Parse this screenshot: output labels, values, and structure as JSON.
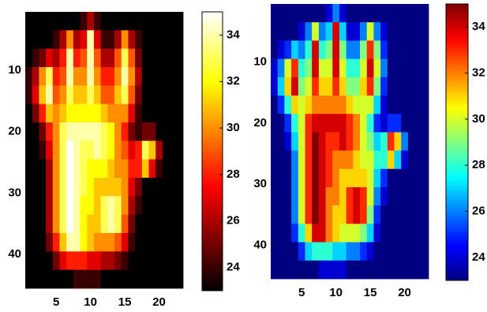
{
  "chart_data": [
    {
      "type": "heatmap",
      "colormap": "hot",
      "x": [
        1,
        2,
        3,
        4,
        5,
        6,
        7,
        8,
        9,
        10,
        11,
        12,
        13,
        14,
        15,
        16,
        17,
        18,
        19,
        20,
        21,
        22,
        23
      ],
      "y": [
        2,
        5,
        8,
        11,
        14,
        17,
        20,
        23,
        26,
        29,
        32,
        35,
        38,
        41,
        44
      ],
      "z": [
        [
          23,
          23,
          23,
          23,
          23,
          23,
          23,
          23,
          24,
          26,
          24,
          23,
          23,
          23,
          23,
          23,
          23,
          23,
          23,
          23,
          23,
          23,
          23
        ],
        [
          23,
          23,
          23,
          23,
          24,
          26,
          30,
          26,
          27,
          34,
          27,
          24,
          24,
          26,
          30,
          26,
          24,
          23,
          23,
          23,
          23,
          23,
          23
        ],
        [
          23,
          24,
          25,
          27,
          26,
          28,
          34,
          28,
          29,
          34,
          29,
          26,
          26,
          29,
          33,
          29,
          25,
          23,
          23,
          23,
          23,
          23,
          23
        ],
        [
          24,
          26,
          30,
          33,
          28,
          29,
          34,
          30,
          30,
          34,
          30,
          28,
          28,
          30,
          34,
          30,
          26,
          23,
          23,
          23,
          23,
          23,
          23
        ],
        [
          24,
          27,
          31,
          34,
          29,
          30,
          33,
          31,
          31,
          33,
          31,
          29,
          29,
          31,
          33,
          29,
          25,
          23,
          23,
          23,
          23,
          23,
          23
        ],
        [
          23,
          25,
          28,
          31,
          30,
          31,
          32,
          32,
          32,
          32,
          32,
          31,
          30,
          30,
          30,
          27,
          24,
          23,
          23,
          23,
          23,
          23,
          23
        ],
        [
          23,
          23,
          25,
          28,
          30,
          33,
          34,
          34,
          34,
          34,
          34,
          33,
          32,
          30,
          28,
          25,
          24,
          25,
          25,
          23,
          23,
          23,
          23
        ],
        [
          23,
          23,
          24,
          27,
          30,
          33,
          35,
          34,
          33,
          33,
          34,
          33,
          32,
          30,
          29,
          27,
          28,
          33,
          31,
          26,
          23,
          23,
          23
        ],
        [
          23,
          23,
          23,
          26,
          30,
          33,
          35,
          34,
          33,
          32,
          32,
          32,
          31,
          30,
          30,
          28,
          28,
          31,
          27,
          24,
          23,
          23,
          23
        ],
        [
          23,
          23,
          23,
          26,
          30,
          33,
          35,
          34,
          33,
          32,
          31,
          31,
          31,
          31,
          30,
          27,
          25,
          23,
          23,
          23,
          23,
          23,
          23
        ],
        [
          23,
          23,
          23,
          26,
          30,
          33,
          35,
          34,
          32,
          32,
          31,
          33,
          34,
          33,
          30,
          26,
          24,
          23,
          23,
          23,
          23,
          23,
          23
        ],
        [
          23,
          23,
          23,
          26,
          30,
          33,
          35,
          34,
          32,
          31,
          31,
          33,
          34,
          33,
          29,
          25,
          23,
          23,
          23,
          23,
          23,
          23,
          23
        ],
        [
          23,
          23,
          23,
          25,
          28,
          31,
          34,
          34,
          32,
          31,
          30,
          30,
          30,
          29,
          27,
          24,
          23,
          23,
          23,
          23,
          23,
          23,
          23
        ],
        [
          23,
          23,
          23,
          23,
          25,
          27,
          28,
          28,
          28,
          27,
          27,
          26,
          26,
          25,
          24,
          23,
          23,
          23,
          23,
          23,
          23,
          23,
          23
        ],
        [
          23,
          23,
          23,
          23,
          23,
          23,
          23,
          24,
          24,
          24,
          24,
          23,
          23,
          23,
          23,
          23,
          23,
          23,
          23,
          23,
          23,
          23,
          23
        ]
      ],
      "xlim": [
        0.5,
        23.5
      ],
      "ylim": [
        45.5,
        0.5
      ],
      "xticks": [
        5,
        10,
        15,
        20
      ],
      "yticks": [
        10,
        20,
        30,
        40
      ],
      "clim": [
        23,
        35
      ],
      "cticks": [
        24,
        26,
        28,
        30,
        32,
        34
      ]
    },
    {
      "type": "heatmap",
      "colormap": "jet",
      "x": [
        1,
        2,
        3,
        4,
        5,
        6,
        7,
        8,
        9,
        10,
        11,
        12,
        13,
        14,
        15,
        16,
        17,
        18,
        19,
        20,
        21,
        22,
        23
      ],
      "y": [
        2,
        5,
        8,
        11,
        14,
        17,
        20,
        23,
        26,
        29,
        32,
        35,
        38,
        41,
        44
      ],
      "z": [
        [
          23,
          23,
          23,
          23,
          23,
          23,
          23,
          23,
          24,
          26,
          24,
          23,
          23,
          23,
          23,
          23,
          23,
          23,
          23,
          23,
          23,
          23,
          23
        ],
        [
          23,
          23,
          23,
          23,
          24,
          26,
          30,
          26,
          27,
          34,
          27,
          24,
          24,
          26,
          30,
          26,
          24,
          23,
          23,
          23,
          23,
          23,
          23
        ],
        [
          23,
          24,
          25,
          27,
          26,
          28,
          34,
          28,
          29,
          34,
          29,
          26,
          26,
          29,
          33,
          29,
          25,
          23,
          23,
          23,
          23,
          23,
          23
        ],
        [
          24,
          26,
          30,
          33,
          28,
          29,
          34,
          30,
          30,
          34,
          30,
          28,
          28,
          30,
          34,
          30,
          26,
          23,
          23,
          23,
          23,
          23,
          23
        ],
        [
          24,
          27,
          31,
          34,
          29,
          30,
          33,
          31,
          31,
          33,
          31,
          29,
          29,
          31,
          33,
          29,
          25,
          23,
          23,
          23,
          23,
          23,
          23
        ],
        [
          23,
          25,
          28,
          31,
          30,
          31,
          32,
          32,
          32,
          32,
          32,
          31,
          30,
          30,
          30,
          27,
          24,
          23,
          23,
          23,
          23,
          23,
          23
        ],
        [
          23,
          23,
          25,
          28,
          30,
          33,
          34,
          34,
          34,
          34,
          34,
          33,
          32,
          30,
          28,
          25,
          24,
          25,
          25,
          23,
          23,
          23,
          23
        ],
        [
          23,
          23,
          24,
          27,
          30,
          33,
          35,
          34,
          33,
          33,
          34,
          33,
          32,
          30,
          29,
          27,
          28,
          33,
          31,
          26,
          23,
          23,
          23
        ],
        [
          23,
          23,
          23,
          26,
          30,
          33,
          35,
          34,
          33,
          32,
          32,
          32,
          31,
          30,
          30,
          28,
          28,
          31,
          27,
          24,
          23,
          23,
          23
        ],
        [
          23,
          23,
          23,
          26,
          30,
          33,
          35,
          34,
          33,
          32,
          31,
          31,
          31,
          31,
          30,
          27,
          25,
          23,
          23,
          23,
          23,
          23,
          23
        ],
        [
          23,
          23,
          23,
          26,
          30,
          33,
          35,
          34,
          32,
          32,
          31,
          33,
          34,
          33,
          30,
          26,
          24,
          23,
          23,
          23,
          23,
          23,
          23
        ],
        [
          23,
          23,
          23,
          26,
          30,
          33,
          35,
          34,
          32,
          31,
          31,
          33,
          34,
          33,
          29,
          25,
          23,
          23,
          23,
          23,
          23,
          23,
          23
        ],
        [
          23,
          23,
          23,
          25,
          28,
          31,
          34,
          34,
          32,
          31,
          30,
          30,
          30,
          29,
          27,
          24,
          23,
          23,
          23,
          23,
          23,
          23,
          23
        ],
        [
          23,
          23,
          23,
          23,
          25,
          27,
          28,
          28,
          28,
          27,
          27,
          26,
          26,
          25,
          24,
          23,
          23,
          23,
          23,
          23,
          23,
          23,
          23
        ],
        [
          23,
          23,
          23,
          23,
          23,
          23,
          23,
          24,
          24,
          24,
          24,
          23,
          23,
          23,
          23,
          23,
          23,
          23,
          23,
          23,
          23,
          23,
          23
        ]
      ],
      "xlim": [
        0.5,
        23.5
      ],
      "ylim": [
        45.5,
        0.5
      ],
      "xticks": [
        5,
        10,
        15,
        20
      ],
      "yticks": [
        10,
        20,
        30,
        40
      ],
      "clim": [
        23,
        35
      ],
      "cticks": [
        24,
        26,
        28,
        30,
        32,
        34
      ]
    }
  ]
}
